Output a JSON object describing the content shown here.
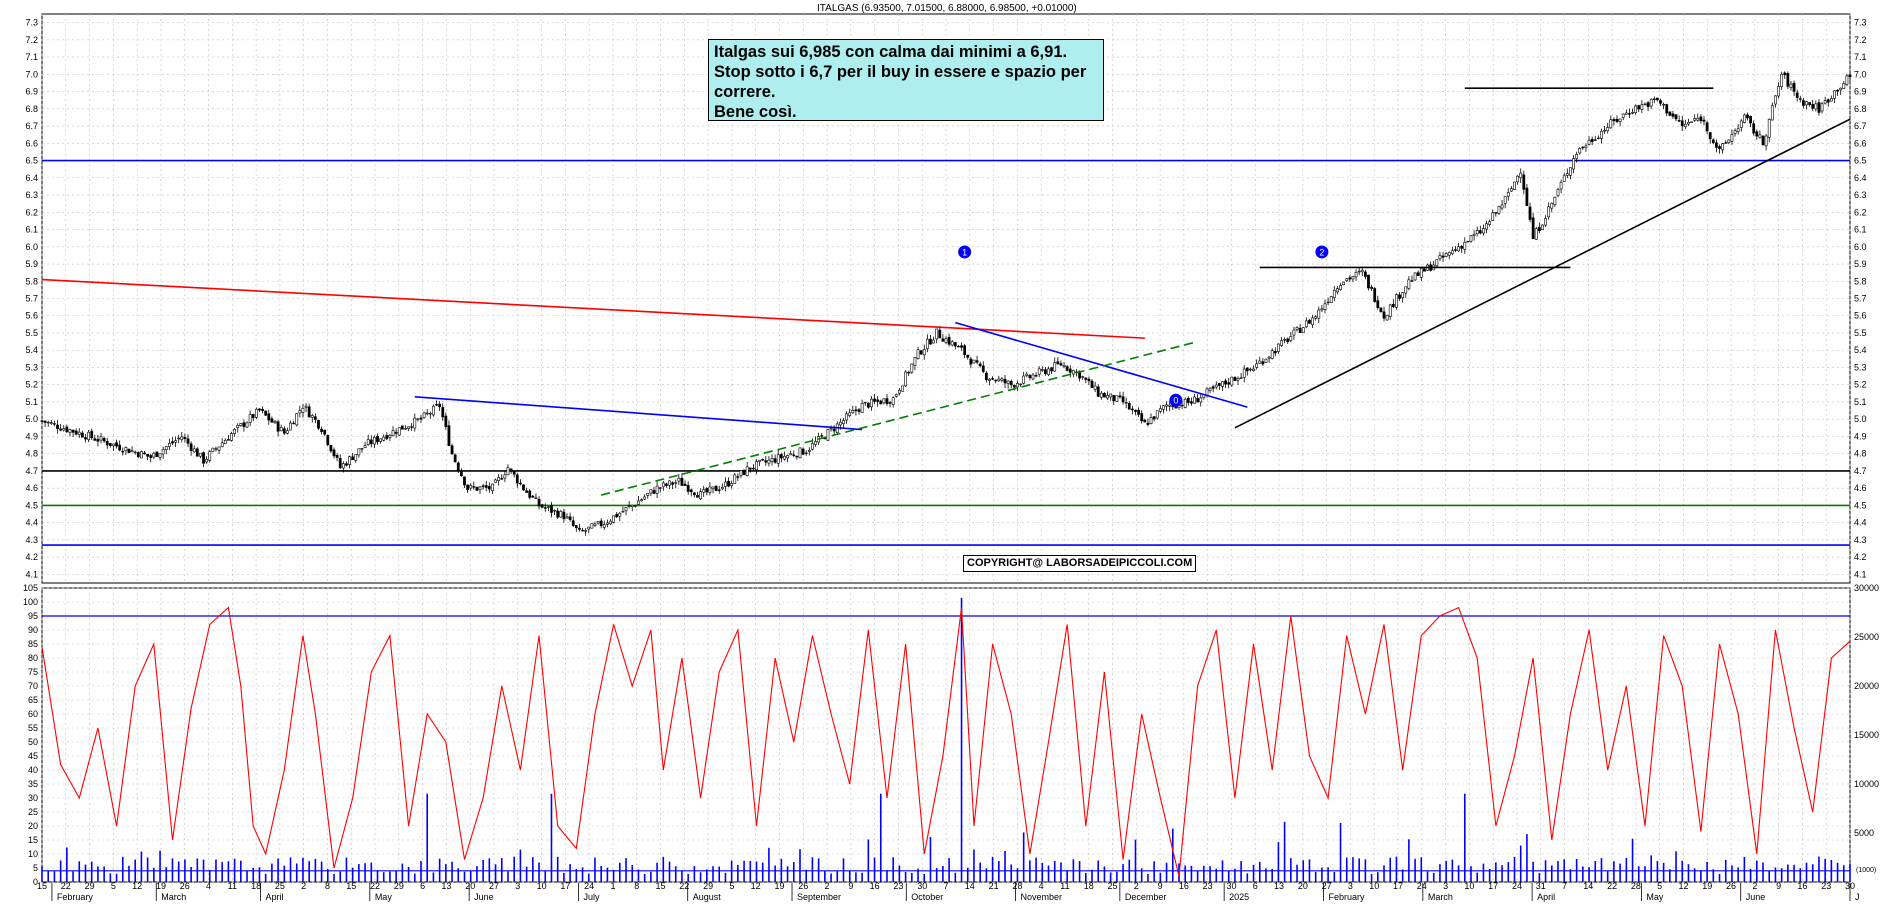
{
  "header": {
    "title": "ITALGAS (6.93500, 7.01500, 6.88000, 6.98500, +0.01000)"
  },
  "note": {
    "lines": [
      "Italgas sui 6,985 con calma dai minimi a 6,91.",
      "Stop sotto i 6,7 per il buy in essere e spazio per",
      "correre.",
      "Bene così."
    ]
  },
  "copyright": "COPYRIGHT@ LABORSADEIPICCOLI.COM",
  "colors": {
    "candle": "#000000",
    "resistance_red": "#ff0000",
    "trend_blue": "#0000ff",
    "support_black": "#000000",
    "support_green": "#008000",
    "oscillator": "#ff0000",
    "volume": "#0000ff",
    "grid": "#bfbfbf"
  },
  "chart_data": [
    {
      "type": "candlestick",
      "ylim": [
        4.05,
        7.35
      ],
      "y_ticks": [
        "7.3",
        "7.2",
        "7.1",
        "7.0",
        "6.9",
        "6.8",
        "6.7",
        "6.6",
        "6.5",
        "6.4",
        "6.3",
        "6.2",
        "6.1",
        "6.0",
        "5.9",
        "5.8",
        "5.7",
        "5.6",
        "5.5",
        "5.4",
        "5.3",
        "5.2",
        "5.1",
        "5.0",
        "4.9",
        "4.8",
        "4.7",
        "4.6",
        "4.5",
        "4.4",
        "4.3",
        "4.2",
        "4.1"
      ],
      "grid": true,
      "price_path": [
        [
          0,
          4.99
        ],
        [
          12,
          4.92
        ],
        [
          25,
          4.84
        ],
        [
          35,
          4.78
        ],
        [
          45,
          4.9
        ],
        [
          52,
          4.76
        ],
        [
          60,
          4.9
        ],
        [
          70,
          5.05
        ],
        [
          78,
          4.92
        ],
        [
          84,
          5.08
        ],
        [
          90,
          4.95
        ],
        [
          96,
          4.72
        ],
        [
          104,
          4.85
        ],
        [
          112,
          4.92
        ],
        [
          122,
          5.0
        ],
        [
          128,
          5.08
        ],
        [
          132,
          4.8
        ],
        [
          137,
          4.6
        ],
        [
          145,
          4.6
        ],
        [
          150,
          4.72
        ],
        [
          155,
          4.6
        ],
        [
          160,
          4.5
        ],
        [
          168,
          4.44
        ],
        [
          173,
          4.34
        ],
        [
          181,
          4.4
        ],
        [
          190,
          4.5
        ],
        [
          198,
          4.6
        ],
        [
          205,
          4.64
        ],
        [
          212,
          4.56
        ],
        [
          220,
          4.62
        ],
        [
          228,
          4.72
        ],
        [
          238,
          4.78
        ],
        [
          246,
          4.82
        ],
        [
          255,
          4.95
        ],
        [
          264,
          5.08
        ],
        [
          274,
          5.12
        ],
        [
          282,
          5.38
        ],
        [
          288,
          5.5
        ],
        [
          296,
          5.4
        ],
        [
          304,
          5.25
        ],
        [
          312,
          5.2
        ],
        [
          320,
          5.26
        ],
        [
          328,
          5.32
        ],
        [
          334,
          5.26
        ],
        [
          340,
          5.15
        ],
        [
          348,
          5.1
        ],
        [
          355,
          4.97
        ],
        [
          362,
          5.08
        ],
        [
          370,
          5.1
        ],
        [
          380,
          5.2
        ],
        [
          390,
          5.3
        ],
        [
          400,
          5.45
        ],
        [
          410,
          5.6
        ],
        [
          418,
          5.8
        ],
        [
          425,
          5.85
        ],
        [
          432,
          5.6
        ],
        [
          440,
          5.8
        ],
        [
          448,
          5.9
        ],
        [
          456,
          6.0
        ],
        [
          464,
          6.1
        ],
        [
          472,
          6.3
        ],
        [
          476,
          6.45
        ],
        [
          480,
          6.05
        ],
        [
          486,
          6.25
        ],
        [
          494,
          6.55
        ],
        [
          504,
          6.7
        ],
        [
          512,
          6.8
        ],
        [
          520,
          6.85
        ],
        [
          528,
          6.7
        ],
        [
          534,
          6.75
        ],
        [
          540,
          6.55
        ],
        [
          548,
          6.75
        ],
        [
          554,
          6.6
        ],
        [
          560,
          7.0
        ],
        [
          566,
          6.85
        ],
        [
          572,
          6.8
        ],
        [
          578,
          6.92
        ],
        [
          582,
          6.985
        ]
      ],
      "horizontal_lines": [
        {
          "name": "",
          "value": 6.5,
          "color": "#0000ff"
        },
        {
          "name": "",
          "value": 4.7,
          "color": "#000000"
        },
        {
          "name": "",
          "value": 4.5,
          "color": "#008000"
        },
        {
          "name": "",
          "value": 4.27,
          "color": "#0000ff"
        }
      ],
      "trendlines": [
        {
          "color": "#ff0000",
          "from": [
            0,
            5.81
          ],
          "to": [
            355,
            5.47
          ],
          "dash": false
        },
        {
          "color": "#0000ff",
          "from": [
            120,
            5.13
          ],
          "to": [
            264,
            4.94
          ],
          "dash": false
        },
        {
          "color": "#0000ff",
          "from": [
            294,
            5.56
          ],
          "to": [
            388,
            5.07
          ],
          "dash": false
        },
        {
          "color": "#008000",
          "from": [
            180,
            4.56
          ],
          "to": [
            372,
            5.45
          ],
          "dash": true
        },
        {
          "color": "#000000",
          "from": [
            384,
            4.95
          ],
          "to": [
            582,
            6.74
          ],
          "dash": false
        },
        {
          "color": "#000000",
          "from": [
            392,
            5.88
          ],
          "to": [
            492,
            5.88
          ],
          "dash": false
        },
        {
          "color": "#000000",
          "from": [
            458,
            6.92
          ],
          "to": [
            538,
            6.92
          ],
          "dash": false
        }
      ],
      "markers": [
        {
          "label": "1",
          "x": 297,
          "y": 5.97
        },
        {
          "label": "2",
          "x": 412,
          "y": 5.97
        },
        {
          "label": "0",
          "x": 365,
          "y": 5.11
        }
      ]
    },
    {
      "type": "line+bar",
      "left_ylim": [
        0,
        105
      ],
      "left_ticks": [
        "105",
        "100",
        "95",
        "90",
        "85",
        "80",
        "75",
        "70",
        "65",
        "60",
        "55",
        "50",
        "45",
        "40",
        "35",
        "30",
        "25",
        "20",
        "15",
        "10",
        "5",
        "0"
      ],
      "right_ticks": [
        "30000",
        "25000",
        "20000",
        "15000",
        "10000",
        "5000"
      ],
      "right_ylim": [
        0,
        30000
      ],
      "level_lines": [
        95,
        4
      ],
      "volume_marker": "(1000)",
      "oscillator_path": [
        [
          0,
          84
        ],
        [
          6,
          42
        ],
        [
          12,
          30
        ],
        [
          18,
          55
        ],
        [
          24,
          20
        ],
        [
          30,
          70
        ],
        [
          36,
          85
        ],
        [
          42,
          15
        ],
        [
          48,
          62
        ],
        [
          54,
          92
        ],
        [
          60,
          98
        ],
        [
          64,
          70
        ],
        [
          68,
          20
        ],
        [
          72,
          10
        ],
        [
          78,
          40
        ],
        [
          84,
          88
        ],
        [
          88,
          60
        ],
        [
          94,
          5
        ],
        [
          100,
          30
        ],
        [
          106,
          75
        ],
        [
          112,
          88
        ],
        [
          118,
          20
        ],
        [
          124,
          60
        ],
        [
          130,
          50
        ],
        [
          136,
          8
        ],
        [
          142,
          30
        ],
        [
          148,
          70
        ],
        [
          154,
          40
        ],
        [
          160,
          88
        ],
        [
          166,
          20
        ],
        [
          172,
          12
        ],
        [
          178,
          60
        ],
        [
          184,
          92
        ],
        [
          190,
          70
        ],
        [
          196,
          90
        ],
        [
          200,
          40
        ],
        [
          206,
          80
        ],
        [
          212,
          30
        ],
        [
          218,
          75
        ],
        [
          224,
          90
        ],
        [
          230,
          20
        ],
        [
          236,
          80
        ],
        [
          242,
          50
        ],
        [
          248,
          88
        ],
        [
          254,
          60
        ],
        [
          260,
          35
        ],
        [
          266,
          90
        ],
        [
          272,
          30
        ],
        [
          278,
          85
        ],
        [
          284,
          10
        ],
        [
          290,
          45
        ],
        [
          296,
          98
        ],
        [
          300,
          20
        ],
        [
          306,
          85
        ],
        [
          312,
          60
        ],
        [
          318,
          10
        ],
        [
          324,
          50
        ],
        [
          330,
          92
        ],
        [
          336,
          20
        ],
        [
          342,
          75
        ],
        [
          348,
          8
        ],
        [
          354,
          60
        ],
        [
          360,
          30
        ],
        [
          366,
          2
        ],
        [
          372,
          70
        ],
        [
          378,
          90
        ],
        [
          384,
          30
        ],
        [
          390,
          85
        ],
        [
          396,
          40
        ],
        [
          402,
          95
        ],
        [
          408,
          45
        ],
        [
          414,
          30
        ],
        [
          420,
          88
        ],
        [
          426,
          60
        ],
        [
          432,
          92
        ],
        [
          438,
          40
        ],
        [
          444,
          88
        ],
        [
          450,
          95
        ],
        [
          456,
          98
        ],
        [
          462,
          80
        ],
        [
          468,
          20
        ],
        [
          474,
          45
        ],
        [
          480,
          80
        ],
        [
          486,
          15
        ],
        [
          492,
          60
        ],
        [
          498,
          90
        ],
        [
          504,
          40
        ],
        [
          510,
          70
        ],
        [
          516,
          20
        ],
        [
          522,
          88
        ],
        [
          528,
          70
        ],
        [
          534,
          18
        ],
        [
          540,
          85
        ],
        [
          546,
          60
        ],
        [
          552,
          10
        ],
        [
          558,
          90
        ],
        [
          564,
          55
        ],
        [
          570,
          25
        ],
        [
          576,
          80
        ],
        [
          582,
          86
        ]
      ]
    }
  ],
  "x_day_ticks": [
    "15",
    "22",
    "29",
    "5",
    "12",
    "19",
    "26",
    "4",
    "11",
    "18",
    "25",
    "2",
    "8",
    "15",
    "22",
    "29",
    "6",
    "13",
    "20",
    "27",
    "3",
    "10",
    "17",
    "24",
    "1",
    "8",
    "15",
    "22",
    "29",
    "5",
    "12",
    "19",
    "26",
    "2",
    "9",
    "16",
    "23",
    "30",
    "7",
    "14",
    "21",
    "28",
    "4",
    "11",
    "18",
    "25",
    "2",
    "9",
    "16",
    "23",
    "30",
    "6",
    "13",
    "20",
    "27",
    "3",
    "10",
    "17",
    "24",
    "3",
    "10",
    "17",
    "24",
    "31",
    "7",
    "14",
    "22",
    "28",
    "5",
    "12",
    "19",
    "26",
    "2",
    "9",
    "16",
    "23",
    "30"
  ],
  "x_month_ticks": [
    {
      "label": "February",
      "i": 2
    },
    {
      "label": "March",
      "i": 23
    },
    {
      "label": "April",
      "i": 44
    },
    {
      "label": "May",
      "i": 66
    },
    {
      "label": "June",
      "i": 86
    },
    {
      "label": "July",
      "i": 108
    },
    {
      "label": "August",
      "i": 130
    },
    {
      "label": "September",
      "i": 151
    },
    {
      "label": "October",
      "i": 174
    },
    {
      "label": "November",
      "i": 196
    },
    {
      "label": "December",
      "i": 217
    },
    {
      "label": "2025",
      "i": 238
    },
    {
      "label": "February",
      "i": 258
    },
    {
      "label": "March",
      "i": 278
    },
    {
      "label": "April",
      "i": 300
    },
    {
      "label": "May",
      "i": 322
    },
    {
      "label": "June",
      "i": 342
    },
    {
      "label": "J",
      "i": 364
    }
  ]
}
